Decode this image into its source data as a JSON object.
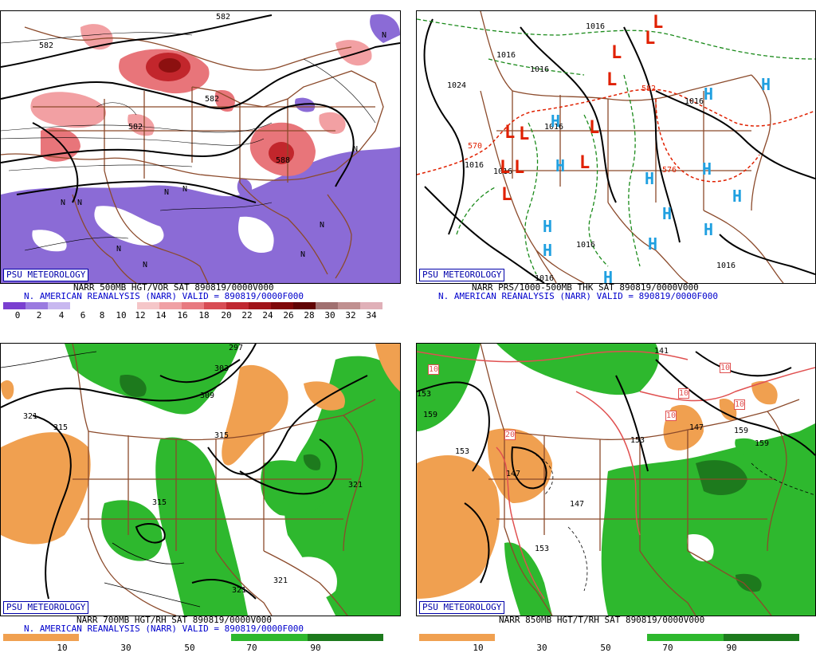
{
  "panels": [
    {
      "id": "p1",
      "credit": "PSU METEOROLOGY",
      "caption_line1": "NARR 500MB HGT/VOR SAT 890819/0000V000",
      "caption_line2": "N. AMERICAN REANALYSIS (NARR) VALID = 890819/0000F000",
      "colorbar_ticks": [
        "0",
        "2",
        "4",
        "6",
        "8",
        "10",
        "12",
        "14",
        "16",
        "18",
        "20",
        "22",
        "24",
        "26",
        "28",
        "30",
        "32",
        "34"
      ],
      "contour_labels": [
        "582",
        "582",
        "582",
        "582",
        "588"
      ],
      "symbols": [
        "N",
        "N",
        "N",
        "N",
        "N",
        "N",
        "N",
        "N",
        "N",
        "N"
      ]
    },
    {
      "id": "p2",
      "credit": "PSU METEOROLOGY",
      "caption_line1": "NARR PRS/1000-500MB THK SAT 890819/0000V000",
      "caption_line2": "N. AMERICAN REANALYSIS (NARR) VALID = 890819/0000F000",
      "contour_labels": [
        "1016",
        "1016",
        "1024",
        "1016",
        "1016",
        "1016",
        "1016",
        "1016",
        "1016",
        "1016",
        "1016",
        "570",
        "576",
        "582"
      ],
      "low_symbol": "L",
      "high_symbol": "H"
    },
    {
      "id": "p3",
      "credit": "PSU METEOROLOGY",
      "caption_line1": "NARR 700MB HGT/RH SAT 890819/0000V000",
      "caption_line2": "N. AMERICAN REANALYSIS (NARR) VALID = 890819/0000F000",
      "colorbar_ticks": [
        "10",
        "30",
        "50",
        "70",
        "90"
      ],
      "contour_labels": [
        "321",
        "315",
        "309",
        "303",
        "297",
        "315",
        "315",
        "321",
        "321",
        "321"
      ]
    },
    {
      "id": "p4",
      "credit": "PSU METEOROLOGY",
      "caption_line1": "NARR 850MB HGT/T/RH SAT 890819/0000V000",
      "caption_line2": "",
      "colorbar_ticks": [
        "10",
        "30",
        "50",
        "70",
        "90"
      ],
      "contour_labels": [
        "159",
        "153",
        "147",
        "147",
        "153",
        "153",
        "159",
        "159",
        "141",
        "147",
        "153"
      ],
      "temp_labels": [
        "10",
        "10",
        "10",
        "10",
        "10",
        "20"
      ]
    }
  ],
  "colors": {
    "map_outline": "#8b4a2b",
    "contour": "#000000",
    "low": "#e02000",
    "high": "#20a0e0",
    "vort_blue": "#8060d0",
    "rh_green": "#2eb82e",
    "rh_orange": "#f0a050"
  }
}
